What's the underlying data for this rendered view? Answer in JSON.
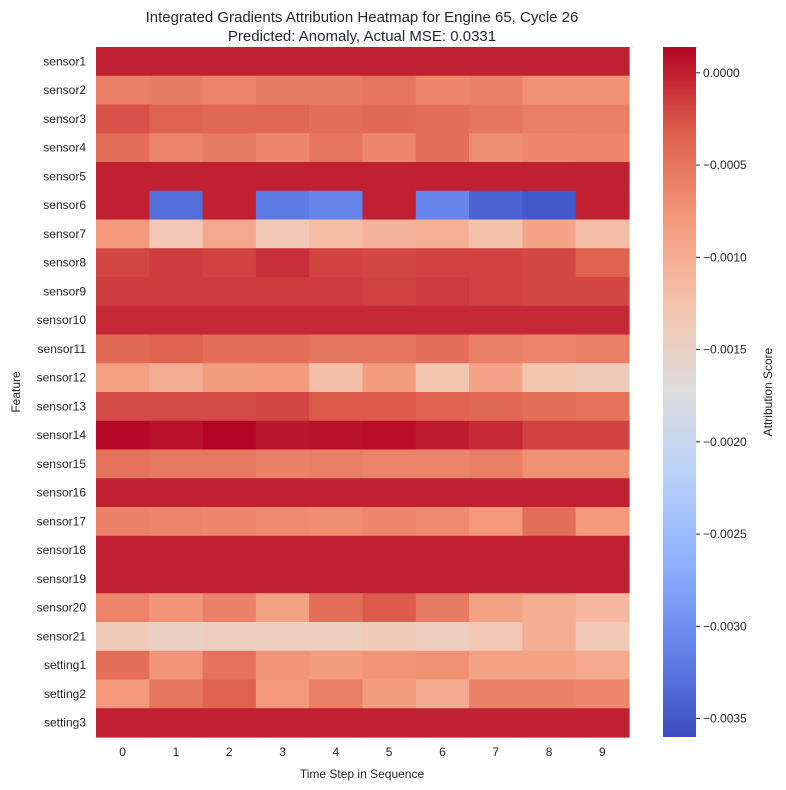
{
  "chart_data": {
    "type": "heatmap",
    "title": "Integrated Gradients Attribution Heatmap for Engine 65, Cycle 26",
    "subtitle": "Predicted: Anomaly, Actual MSE: 0.0331",
    "xlabel": "Time Step in Sequence",
    "ylabel": "Feature",
    "colorbar_label": "Attribution Score",
    "colormap": "coolwarm",
    "vmin": -0.0036,
    "vmax": 0.00014,
    "colorbar_ticks": [
      0.0,
      -0.0005,
      -0.001,
      -0.0015,
      -0.002,
      -0.0025,
      -0.003,
      -0.0035
    ],
    "colorbar_tick_labels": [
      "0.0000",
      "−0.0005",
      "−0.0010",
      "−0.0015",
      "−0.0020",
      "−0.0025",
      "−0.0030",
      "−0.0035"
    ],
    "x": [
      "0",
      "1",
      "2",
      "3",
      "4",
      "5",
      "6",
      "7",
      "8",
      "9"
    ],
    "y": [
      "sensor1",
      "sensor2",
      "sensor3",
      "sensor4",
      "sensor5",
      "sensor6",
      "sensor7",
      "sensor8",
      "sensor9",
      "sensor10",
      "sensor11",
      "sensor12",
      "sensor13",
      "sensor14",
      "sensor15",
      "sensor16",
      "sensor17",
      "sensor18",
      "sensor19",
      "sensor20",
      "sensor21",
      "setting1",
      "setting2",
      "setting3"
    ],
    "values": [
      [
        0.0,
        0.0,
        0.0,
        0.0,
        0.0,
        0.0,
        0.0,
        0.0,
        0.0,
        0.0
      ],
      [
        -0.00058,
        -0.00055,
        -0.00062,
        -0.00055,
        -0.00055,
        -0.0005,
        -0.00065,
        -0.0006,
        -0.00072,
        -0.00072
      ],
      [
        -0.00025,
        -0.00035,
        -0.0004,
        -0.00038,
        -0.00045,
        -0.0004,
        -0.00045,
        -0.0005,
        -0.00058,
        -0.00058
      ],
      [
        -0.00045,
        -0.00062,
        -0.00055,
        -0.00065,
        -0.0005,
        -0.00065,
        -0.00045,
        -0.0007,
        -0.00065,
        -0.00062
      ],
      [
        0.0,
        0.0,
        0.0,
        0.0,
        0.0,
        0.0,
        0.0,
        0.0,
        0.0,
        0.0
      ],
      [
        0.0,
        -0.0033,
        0.0,
        -0.0032,
        -0.0031,
        0.0,
        -0.0031,
        -0.0034,
        -0.0035,
        0.0
      ],
      [
        -0.00078,
        -0.00132,
        -0.00095,
        -0.00133,
        -0.00118,
        -0.00108,
        -0.00105,
        -0.00125,
        -0.00092,
        -0.0012
      ],
      [
        -0.0002,
        -0.00015,
        -0.00018,
        -8e-05,
        -0.00018,
        -0.0002,
        -0.00018,
        -0.00018,
        -0.0002,
        -0.00035
      ],
      [
        -0.00015,
        -0.00015,
        -0.00015,
        -0.00015,
        -0.00015,
        -0.00018,
        -0.00015,
        -0.00018,
        -0.0002,
        -0.0002
      ],
      [
        -5e-05,
        -5e-05,
        -5e-05,
        -5e-05,
        -5e-05,
        -5e-05,
        -5e-05,
        -5e-05,
        -5e-05,
        -5e-05
      ],
      [
        -0.0004,
        -0.00035,
        -0.00045,
        -0.00045,
        -0.0005,
        -0.0005,
        -0.00045,
        -0.00058,
        -0.00062,
        -0.00058
      ],
      [
        -0.00085,
        -0.00102,
        -0.00082,
        -0.0008,
        -0.00122,
        -0.00082,
        -0.00128,
        -0.0009,
        -0.00128,
        -0.00138
      ],
      [
        -0.00022,
        -0.00022,
        -0.00022,
        -0.0002,
        -0.0003,
        -0.0003,
        -0.00035,
        -0.0004,
        -0.00045,
        -0.00048
      ],
      [
        0.00012,
        8e-05,
        0.00014,
        5e-05,
        8e-05,
        0.0001,
        2e-05,
        -5e-05,
        -0.00018,
        -0.00018
      ],
      [
        -0.00048,
        -0.00052,
        -0.00052,
        -0.0006,
        -0.00058,
        -0.00062,
        -0.00062,
        -0.00058,
        -0.00072,
        -0.00072
      ],
      [
        0.0,
        0.0,
        0.0,
        0.0,
        0.0,
        0.0,
        0.0,
        0.0,
        0.0,
        0.0
      ],
      [
        -0.0006,
        -0.00062,
        -0.00065,
        -0.00068,
        -0.0007,
        -0.00065,
        -0.00068,
        -0.00078,
        -0.00045,
        -0.0008
      ],
      [
        0.0,
        0.0,
        0.0,
        0.0,
        0.0,
        0.0,
        0.0,
        0.0,
        0.0,
        0.0
      ],
      [
        0.0,
        0.0,
        0.0,
        0.0,
        0.0,
        0.0,
        0.0,
        0.0,
        0.0,
        0.0
      ],
      [
        -0.00062,
        -0.00075,
        -0.0006,
        -0.00088,
        -0.00045,
        -0.0003,
        -0.00055,
        -0.00088,
        -0.00102,
        -0.00112
      ],
      [
        -0.00138,
        -0.00148,
        -0.00143,
        -0.00143,
        -0.00143,
        -0.00138,
        -0.00143,
        -0.00132,
        -0.00102,
        -0.00135
      ],
      [
        -0.00045,
        -0.00075,
        -0.00048,
        -0.00075,
        -0.00082,
        -0.00075,
        -0.00072,
        -0.00088,
        -0.00088,
        -0.00095
      ],
      [
        -0.00078,
        -0.0005,
        -0.00035,
        -0.00078,
        -0.00058,
        -0.00082,
        -0.00098,
        -0.0006,
        -0.0006,
        -0.00065
      ],
      [
        0.0,
        0.0,
        0.0,
        0.0,
        0.0,
        0.0,
        0.0,
        0.0,
        0.0,
        0.0
      ]
    ]
  }
}
